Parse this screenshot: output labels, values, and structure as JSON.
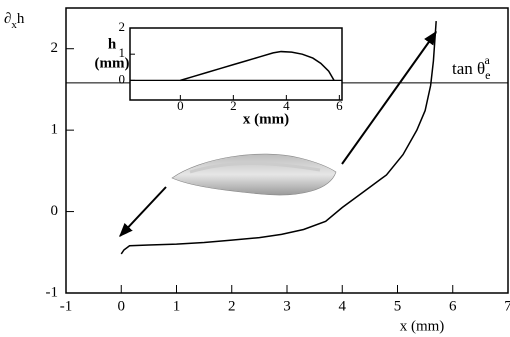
{
  "chart_data": [
    {
      "type": "line",
      "ylabel": {
        "base": "∂",
        "sub": "x",
        "rest": "h"
      },
      "xlabel": "x (mm)",
      "xlim": [
        -1,
        7
      ],
      "xticks": [
        -1,
        0,
        1,
        2,
        3,
        4,
        5,
        6,
        7
      ],
      "ylim": [
        -1,
        2.5
      ],
      "yticks": [
        -1,
        0,
        1,
        2
      ],
      "annotation": {
        "text": "tan θ",
        "sub": "e",
        "sup": "a",
        "value": 1.58
      },
      "series": [
        {
          "color": "#000000",
          "x": [
            0,
            0.05,
            0.15,
            0.5,
            1,
            1.5,
            2,
            2.5,
            2.9,
            3.3,
            3.7,
            4,
            4.4,
            4.8,
            5.1,
            5.35,
            5.5,
            5.6,
            5.65,
            5.7
          ],
          "values": [
            -0.52,
            -0.47,
            -0.42,
            -0.41,
            -0.4,
            -0.38,
            -0.35,
            -0.32,
            -0.28,
            -0.22,
            -0.12,
            0.05,
            0.25,
            0.45,
            0.7,
            1.0,
            1.24,
            1.55,
            1.85,
            2.34
          ]
        }
      ]
    },
    {
      "type": "line",
      "ylabel": [
        "h",
        "(mm)"
      ],
      "xlabel": "x (mm)",
      "xlim": [
        -1.9,
        6.1
      ],
      "xticks": [
        0,
        2,
        4,
        6
      ],
      "ylim": [
        -0.75,
        2
      ],
      "yticks": [
        0,
        1,
        2
      ],
      "baseline": 0,
      "series": [
        {
          "color": "#000000",
          "x": [
            0,
            0.5,
            1,
            1.5,
            2,
            2.5,
            3,
            3.5,
            3.8,
            4.2,
            4.6,
            5,
            5.3,
            5.6,
            5.8
          ],
          "values": [
            0,
            0.15,
            0.3,
            0.45,
            0.6,
            0.75,
            0.9,
            1.05,
            1.1,
            1.08,
            1.0,
            0.85,
            0.65,
            0.35,
            0
          ]
        }
      ]
    }
  ]
}
